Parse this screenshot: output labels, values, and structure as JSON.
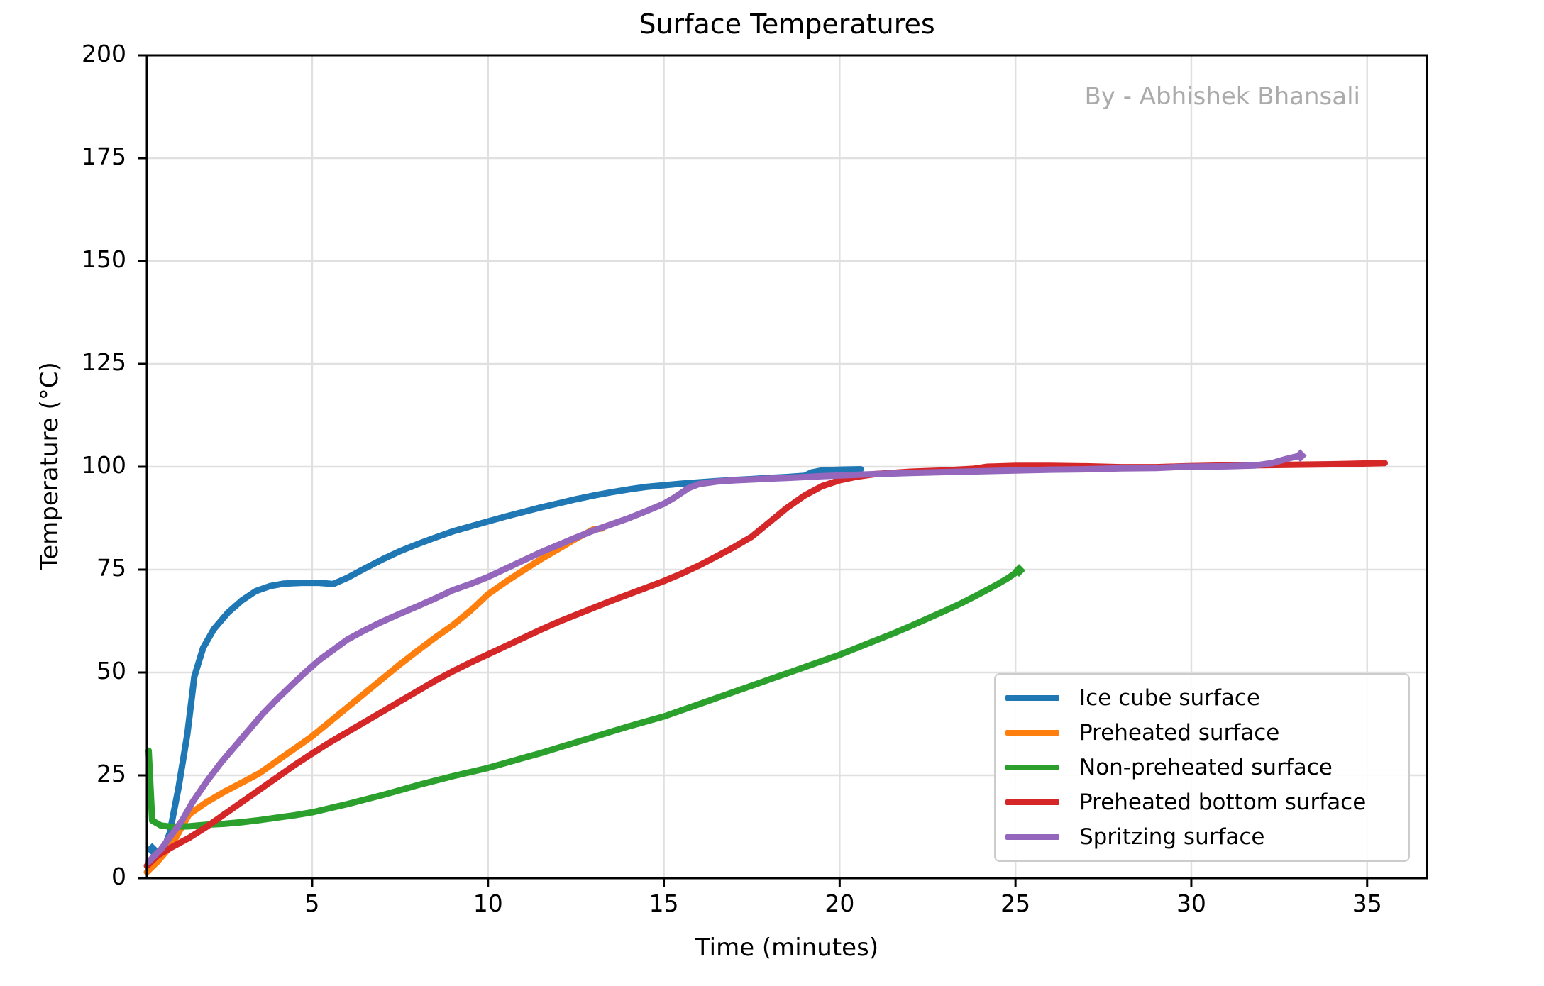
{
  "figure": {
    "title": "Surface Temperatures",
    "watermark": "By - Abhishek Bhansali",
    "background": "#ffffff"
  },
  "axes": {
    "xlabel": "Time (minutes)",
    "ylabel": "Temperature (°C)",
    "xticks": [
      5,
      10,
      15,
      20,
      25,
      30,
      35
    ],
    "yticks": [
      0,
      25,
      50,
      75,
      100,
      125,
      150,
      175,
      200
    ],
    "xlim": [
      0.3,
      36.7
    ],
    "ylim": [
      0,
      200
    ],
    "grid": true,
    "grid_color": "#e0e0e0",
    "spine_color": "#000000",
    "tick_color": "#000000"
  },
  "legend": {
    "position": "lower right",
    "border_color": "#cccccc"
  },
  "chart_data": {
    "type": "line",
    "title": "Surface Temperatures",
    "xlabel": "Time (minutes)",
    "ylabel": "Temperature (°C)",
    "xlim": [
      0.3,
      36.7
    ],
    "ylim": [
      0,
      200
    ],
    "grid": true,
    "legend_position": "lower right",
    "series": [
      {
        "name": "Ice cube surface",
        "color": "#1f77b4",
        "marker_start": true,
        "marker_end": false,
        "points": [
          [
            0.45,
            7
          ],
          [
            0.7,
            5.2
          ],
          [
            0.95,
            11
          ],
          [
            1.2,
            22
          ],
          [
            1.45,
            35
          ],
          [
            1.65,
            49
          ],
          [
            1.9,
            56
          ],
          [
            2.2,
            60.5
          ],
          [
            2.6,
            64.5
          ],
          [
            3,
            67.5
          ],
          [
            3.4,
            69.8
          ],
          [
            3.8,
            71
          ],
          [
            4.2,
            71.6
          ],
          [
            4.7,
            71.8
          ],
          [
            5.2,
            71.8
          ],
          [
            5.6,
            71.5
          ],
          [
            6,
            73
          ],
          [
            6.5,
            75.3
          ],
          [
            7,
            77.5
          ],
          [
            7.5,
            79.5
          ],
          [
            8,
            81.2
          ],
          [
            8.5,
            82.8
          ],
          [
            9,
            84.3
          ],
          [
            9.5,
            85.5
          ],
          [
            10,
            86.7
          ],
          [
            10.5,
            87.9
          ],
          [
            11,
            89
          ],
          [
            11.5,
            90.1
          ],
          [
            12,
            91.1
          ],
          [
            12.5,
            92.1
          ],
          [
            13,
            93
          ],
          [
            13.5,
            93.8
          ],
          [
            14,
            94.5
          ],
          [
            14.5,
            95.1
          ],
          [
            15,
            95.5
          ],
          [
            15.5,
            95.9
          ],
          [
            16,
            96.2
          ],
          [
            16.5,
            96.5
          ],
          [
            17,
            96.8
          ],
          [
            17.5,
            97
          ],
          [
            18,
            97.3
          ],
          [
            18.5,
            97.5
          ],
          [
            19,
            97.8
          ],
          [
            19.2,
            98.6
          ],
          [
            19.5,
            99.1
          ],
          [
            20,
            99.3
          ],
          [
            20.6,
            99.4
          ]
        ]
      },
      {
        "name": "Preheated surface",
        "color": "#ff7f0e",
        "marker_start": false,
        "marker_end": false,
        "points": [
          [
            0.3,
            1.5
          ],
          [
            0.6,
            4
          ],
          [
            1,
            8
          ],
          [
            1.5,
            15.5
          ],
          [
            2,
            18.5
          ],
          [
            2.5,
            21
          ],
          [
            3,
            23.2
          ],
          [
            3.5,
            25.5
          ],
          [
            4,
            28.5
          ],
          [
            4.5,
            31.5
          ],
          [
            5,
            34.5
          ],
          [
            5.5,
            38
          ],
          [
            6,
            41.5
          ],
          [
            6.5,
            45
          ],
          [
            7,
            48.5
          ],
          [
            7.5,
            52
          ],
          [
            8,
            55.3
          ],
          [
            8.5,
            58.5
          ],
          [
            9,
            61.5
          ],
          [
            9.5,
            65
          ],
          [
            10,
            69
          ],
          [
            10.5,
            72
          ],
          [
            11,
            74.8
          ],
          [
            11.5,
            77.5
          ],
          [
            12,
            80
          ],
          [
            12.5,
            82.5
          ],
          [
            13,
            84.8
          ],
          [
            13.25,
            85
          ]
        ]
      },
      {
        "name": "Non-preheated surface",
        "color": "#2ca02c",
        "marker_start": false,
        "marker_end": true,
        "points": [
          [
            0.35,
            31
          ],
          [
            0.45,
            14
          ],
          [
            0.7,
            12.8
          ],
          [
            1,
            12.5
          ],
          [
            1.5,
            12.6
          ],
          [
            2,
            13
          ],
          [
            2.5,
            13.2
          ],
          [
            3,
            13.6
          ],
          [
            3.5,
            14.1
          ],
          [
            4,
            14.7
          ],
          [
            4.5,
            15.3
          ],
          [
            5,
            16
          ],
          [
            5.5,
            17
          ],
          [
            6,
            18
          ],
          [
            6.5,
            19.1
          ],
          [
            7,
            20.2
          ],
          [
            7.5,
            21.4
          ],
          [
            8,
            22.6
          ],
          [
            8.5,
            23.7
          ],
          [
            9,
            24.8
          ],
          [
            9.5,
            25.8
          ],
          [
            10,
            26.8
          ],
          [
            10.5,
            28
          ],
          [
            11,
            29.2
          ],
          [
            11.5,
            30.4
          ],
          [
            12,
            31.7
          ],
          [
            12.5,
            33
          ],
          [
            13,
            34.3
          ],
          [
            13.5,
            35.6
          ],
          [
            14,
            36.9
          ],
          [
            14.5,
            38.1
          ],
          [
            15,
            39.3
          ],
          [
            15.5,
            40.8
          ],
          [
            16,
            42.3
          ],
          [
            16.5,
            43.8
          ],
          [
            17,
            45.3
          ],
          [
            17.5,
            46.8
          ],
          [
            18,
            48.3
          ],
          [
            18.5,
            49.8
          ],
          [
            19,
            51.3
          ],
          [
            19.5,
            52.8
          ],
          [
            20,
            54.3
          ],
          [
            20.5,
            56
          ],
          [
            21,
            57.7
          ],
          [
            21.5,
            59.4
          ],
          [
            22,
            61.2
          ],
          [
            22.5,
            63.1
          ],
          [
            23,
            65
          ],
          [
            23.5,
            67
          ],
          [
            24,
            69.2
          ],
          [
            24.5,
            71.5
          ],
          [
            24.8,
            73
          ],
          [
            25.1,
            74.8
          ]
        ]
      },
      {
        "name": "Preheated bottom surface",
        "color": "#d62728",
        "marker_start": false,
        "marker_end": false,
        "points": [
          [
            0.3,
            3
          ],
          [
            0.6,
            5.5
          ],
          [
            1,
            7.5
          ],
          [
            1.5,
            9.8
          ],
          [
            2,
            12.5
          ],
          [
            2.5,
            15.5
          ],
          [
            3,
            18.5
          ],
          [
            3.5,
            21.5
          ],
          [
            4,
            24.5
          ],
          [
            4.5,
            27.5
          ],
          [
            5,
            30.3
          ],
          [
            5.5,
            33
          ],
          [
            6,
            35.5
          ],
          [
            6.5,
            38
          ],
          [
            7,
            40.5
          ],
          [
            7.5,
            43
          ],
          [
            8,
            45.5
          ],
          [
            8.5,
            48
          ],
          [
            9,
            50.3
          ],
          [
            9.5,
            52.4
          ],
          [
            10,
            54.4
          ],
          [
            10.5,
            56.4
          ],
          [
            11,
            58.4
          ],
          [
            11.5,
            60.4
          ],
          [
            12,
            62.3
          ],
          [
            12.5,
            64
          ],
          [
            13,
            65.7
          ],
          [
            13.5,
            67.4
          ],
          [
            14,
            69
          ],
          [
            14.5,
            70.6
          ],
          [
            15,
            72.2
          ],
          [
            15.5,
            74
          ],
          [
            16,
            76
          ],
          [
            16.5,
            78.2
          ],
          [
            17,
            80.5
          ],
          [
            17.5,
            83
          ],
          [
            18,
            86.5
          ],
          [
            18.5,
            90
          ],
          [
            19,
            93
          ],
          [
            19.5,
            95.3
          ],
          [
            20,
            96.7
          ],
          [
            20.5,
            97.6
          ],
          [
            21,
            98.2
          ],
          [
            21.5,
            98.5
          ],
          [
            22,
            98.8
          ],
          [
            23,
            99.1
          ],
          [
            23.8,
            99.5
          ],
          [
            24.2,
            100
          ],
          [
            25,
            100.2
          ],
          [
            26,
            100.2
          ],
          [
            27,
            100.1
          ],
          [
            28,
            99.9
          ],
          [
            29,
            99.9
          ],
          [
            29.8,
            100.1
          ],
          [
            31,
            100.3
          ],
          [
            32,
            100.4
          ],
          [
            33,
            100.5
          ],
          [
            34,
            100.6
          ],
          [
            35,
            100.8
          ],
          [
            35.5,
            100.9
          ]
        ]
      },
      {
        "name": "Spritzing surface",
        "color": "#9467bd",
        "marker_start": false,
        "marker_end": true,
        "points": [
          [
            0.35,
            4
          ],
          [
            0.7,
            7
          ],
          [
            1,
            10.5
          ],
          [
            1.3,
            14
          ],
          [
            1.6,
            18.5
          ],
          [
            2,
            23.5
          ],
          [
            2.4,
            28
          ],
          [
            2.8,
            32
          ],
          [
            3.2,
            36
          ],
          [
            3.6,
            40
          ],
          [
            4,
            43.5
          ],
          [
            4.4,
            46.8
          ],
          [
            4.8,
            50
          ],
          [
            5.2,
            53
          ],
          [
            5.6,
            55.5
          ],
          [
            6,
            58
          ],
          [
            6.5,
            60.3
          ],
          [
            7,
            62.4
          ],
          [
            7.5,
            64.3
          ],
          [
            8,
            66.1
          ],
          [
            8.5,
            68
          ],
          [
            9,
            70
          ],
          [
            9.5,
            71.5
          ],
          [
            10,
            73.2
          ],
          [
            10.5,
            75.2
          ],
          [
            11,
            77.2
          ],
          [
            11.5,
            79.2
          ],
          [
            12,
            81
          ],
          [
            12.5,
            82.8
          ],
          [
            13,
            84.5
          ],
          [
            13.5,
            86
          ],
          [
            14,
            87.5
          ],
          [
            14.5,
            89.2
          ],
          [
            15,
            91
          ],
          [
            15.3,
            92.5
          ],
          [
            15.7,
            94.8
          ],
          [
            16,
            95.8
          ],
          [
            16.5,
            96.4
          ],
          [
            17,
            96.7
          ],
          [
            17.5,
            96.9
          ],
          [
            18,
            97.1
          ],
          [
            18.5,
            97.3
          ],
          [
            19,
            97.5
          ],
          [
            19.5,
            97.7
          ],
          [
            20,
            97.9
          ],
          [
            21,
            98.2
          ],
          [
            22,
            98.5
          ],
          [
            23,
            98.7
          ],
          [
            24,
            98.9
          ],
          [
            25,
            99.1
          ],
          [
            26,
            99.3
          ],
          [
            27,
            99.4
          ],
          [
            28,
            99.6
          ],
          [
            29,
            99.7
          ],
          [
            29.8,
            100
          ],
          [
            31,
            100.1
          ],
          [
            31.8,
            100.3
          ],
          [
            32.3,
            100.9
          ],
          [
            32.7,
            101.9
          ],
          [
            33.1,
            102.7
          ]
        ]
      }
    ]
  }
}
